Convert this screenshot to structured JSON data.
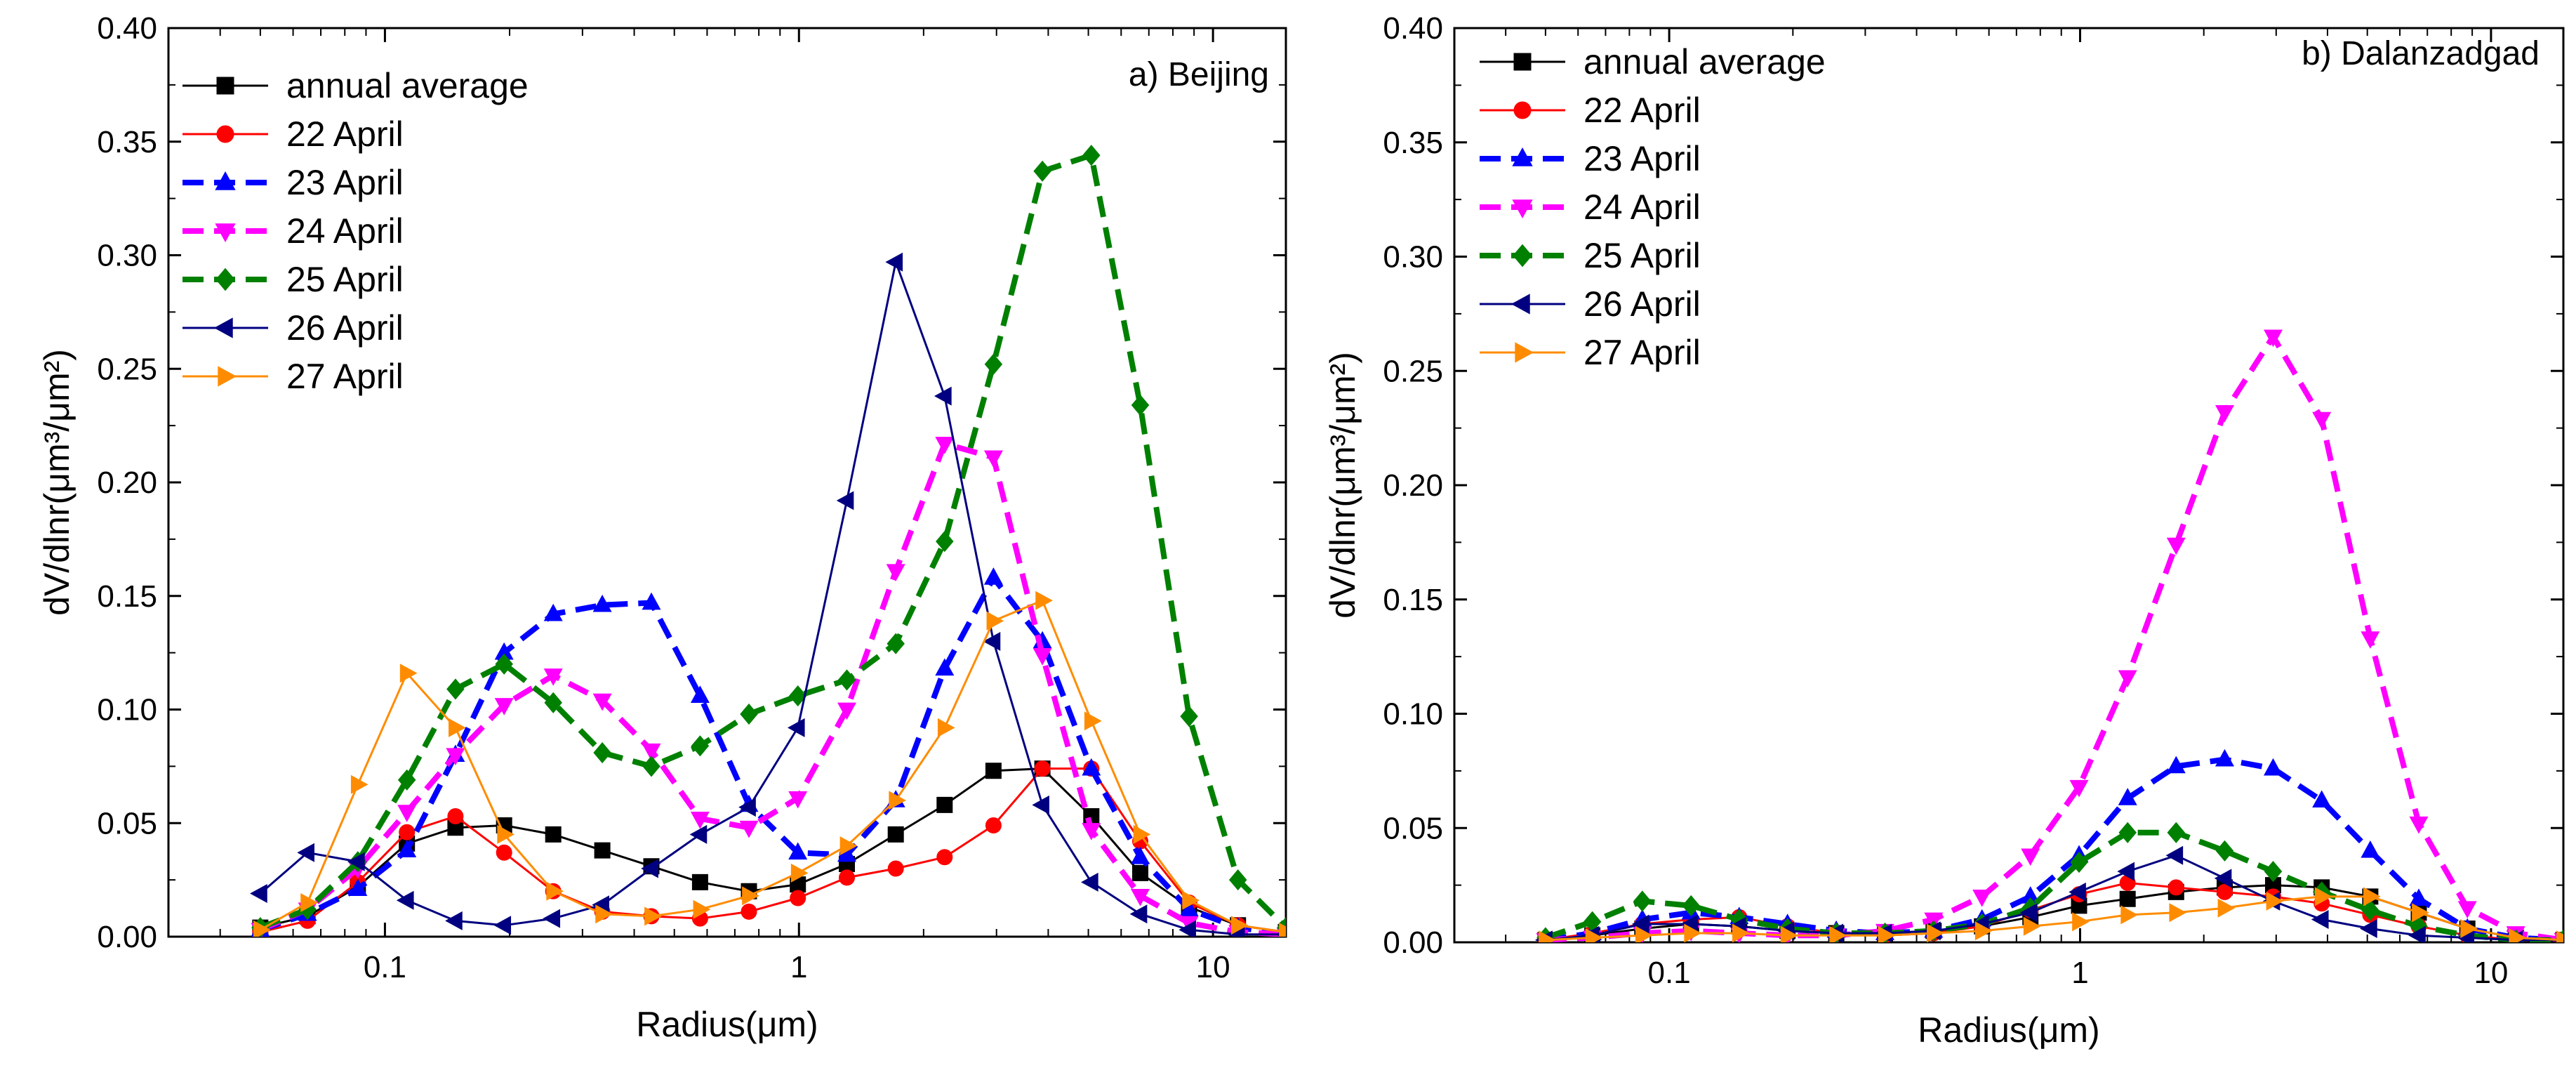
{
  "chart_data": [
    {
      "type": "line",
      "title": "a) Beijing",
      "xlabel": "Radius(μm)",
      "ylabel": "dV/dlnr(μm³/μm²)",
      "xscale": "log",
      "xlim": [
        0.03,
        15
      ],
      "ylim": [
        0,
        0.4
      ],
      "xticks": [
        0.1,
        1,
        10
      ],
      "xtick_labels": [
        "0.1",
        "1",
        "10"
      ],
      "yticks": [
        0,
        0.05,
        0.1,
        0.15,
        0.2,
        0.25,
        0.3,
        0.35,
        0.4
      ],
      "ytick_labels": [
        "0.00",
        "0.05",
        "0.10",
        "0.15",
        "0.20",
        "0.25",
        "0.30",
        "0.35",
        "0.40"
      ],
      "legend_position": "top-left",
      "x": [
        0.05,
        0.065,
        0.086,
        0.113,
        0.148,
        0.194,
        0.255,
        0.335,
        0.44,
        0.577,
        0.757,
        0.994,
        1.305,
        1.713,
        2.248,
        2.95,
        3.872,
        5.083,
        6.672,
        8.757,
        11.49,
        15.0
      ],
      "series": [
        {
          "name": "annual average",
          "color": "#000000",
          "marker": "square",
          "dashed": false,
          "values": [
            0.004,
            0.009,
            0.022,
            0.041,
            0.048,
            0.049,
            0.045,
            0.038,
            0.031,
            0.024,
            0.02,
            0.023,
            0.032,
            0.045,
            0.058,
            0.073,
            0.074,
            0.053,
            0.028,
            0.013,
            0.005,
            0.002
          ]
        },
        {
          "name": "22 April",
          "color": "#ff0000",
          "marker": "circle",
          "dashed": false,
          "values": [
            0.002,
            0.007,
            0.024,
            0.046,
            0.053,
            0.037,
            0.02,
            0.011,
            0.009,
            0.008,
            0.011,
            0.017,
            0.026,
            0.03,
            0.035,
            0.049,
            0.074,
            0.074,
            0.042,
            0.015,
            0.005,
            0.002
          ]
        },
        {
          "name": "23 April",
          "color": "#0000ff",
          "marker": "triangle-up",
          "dashed": true,
          "values": [
            0.003,
            0.01,
            0.021,
            0.038,
            0.08,
            0.125,
            0.142,
            0.146,
            0.147,
            0.106,
            0.058,
            0.037,
            0.036,
            0.06,
            0.118,
            0.158,
            0.13,
            0.074,
            0.035,
            0.012,
            0.004,
            0.001
          ]
        },
        {
          "name": "24 April",
          "color": "#ff00ff",
          "marker": "triangle-down",
          "dashed": true,
          "values": [
            0.003,
            0.012,
            0.03,
            0.055,
            0.08,
            0.102,
            0.115,
            0.104,
            0.082,
            0.052,
            0.048,
            0.061,
            0.1,
            0.161,
            0.217,
            0.211,
            0.124,
            0.047,
            0.018,
            0.006,
            0.002,
            0.001
          ]
        },
        {
          "name": "25 April",
          "color": "#008000",
          "marker": "diamond",
          "dashed": true,
          "values": [
            0.004,
            0.012,
            0.033,
            0.069,
            0.109,
            0.12,
            0.103,
            0.081,
            0.075,
            0.084,
            0.098,
            0.106,
            0.113,
            0.129,
            0.174,
            0.252,
            0.337,
            0.344,
            0.234,
            0.097,
            0.025,
            0.004
          ]
        },
        {
          "name": "26 April",
          "color": "#000080",
          "marker": "triangle-left",
          "dashed": false,
          "values": [
            0.019,
            0.037,
            0.033,
            0.016,
            0.007,
            0.005,
            0.008,
            0.014,
            0.03,
            0.045,
            0.057,
            0.092,
            0.192,
            0.297,
            0.238,
            0.13,
            0.058,
            0.024,
            0.01,
            0.003,
            0.001,
            0.001
          ]
        },
        {
          "name": "27 April",
          "color": "#ff8c00",
          "marker": "triangle-right",
          "dashed": false,
          "values": [
            0.003,
            0.015,
            0.067,
            0.116,
            0.092,
            0.045,
            0.02,
            0.01,
            0.009,
            0.012,
            0.018,
            0.028,
            0.04,
            0.06,
            0.092,
            0.139,
            0.148,
            0.095,
            0.045,
            0.016,
            0.005,
            0.002
          ]
        }
      ]
    },
    {
      "type": "line",
      "title": "b) Dalanzadgad",
      "xlabel": "Radius(μm)",
      "ylabel": "dV/dlnr(μm³/μm²)",
      "xscale": "log",
      "xlim": [
        0.03,
        15
      ],
      "ylim": [
        0,
        0.4
      ],
      "xticks": [
        0.1,
        1,
        10
      ],
      "xtick_labels": [
        "0.1",
        "1",
        "10"
      ],
      "yticks": [
        0,
        0.05,
        0.1,
        0.15,
        0.2,
        0.25,
        0.3,
        0.35,
        0.4
      ],
      "ytick_labels": [
        "0.00",
        "0.05",
        "0.10",
        "0.15",
        "0.20",
        "0.25",
        "0.30",
        "0.35",
        "0.40"
      ],
      "legend_position": "top-left",
      "x": [
        0.05,
        0.065,
        0.086,
        0.113,
        0.148,
        0.194,
        0.255,
        0.335,
        0.44,
        0.577,
        0.757,
        0.994,
        1.305,
        1.713,
        2.248,
        2.95,
        3.872,
        5.083,
        6.672,
        8.757,
        11.49,
        15.0
      ],
      "series": [
        {
          "name": "annual average",
          "color": "#000000",
          "marker": "square",
          "dashed": false,
          "values": [
            0.001,
            0.003,
            0.006,
            0.008,
            0.007,
            0.005,
            0.004,
            0.004,
            0.005,
            0.007,
            0.011,
            0.016,
            0.019,
            0.022,
            0.024,
            0.025,
            0.024,
            0.02,
            0.013,
            0.006,
            0.002,
            0.001
          ]
        },
        {
          "name": "22 April",
          "color": "#ff0000",
          "marker": "circle",
          "dashed": false,
          "values": [
            0.001,
            0.004,
            0.008,
            0.01,
            0.011,
            0.007,
            0.004,
            0.003,
            0.004,
            0.007,
            0.014,
            0.021,
            0.026,
            0.024,
            0.022,
            0.02,
            0.017,
            0.012,
            0.007,
            0.003,
            0.001,
            0.001
          ]
        },
        {
          "name": "23 April",
          "color": "#0000ff",
          "marker": "triangle-up",
          "dashed": true,
          "values": [
            0.001,
            0.004,
            0.01,
            0.013,
            0.011,
            0.008,
            0.005,
            0.004,
            0.005,
            0.01,
            0.02,
            0.038,
            0.063,
            0.077,
            0.08,
            0.076,
            0.062,
            0.04,
            0.019,
            0.006,
            0.002,
            0.001
          ]
        },
        {
          "name": "24 April",
          "color": "#ff00ff",
          "marker": "triangle-down",
          "dashed": true,
          "values": [
            0.001,
            0.002,
            0.004,
            0.005,
            0.004,
            0.003,
            0.003,
            0.005,
            0.01,
            0.02,
            0.038,
            0.068,
            0.116,
            0.174,
            0.232,
            0.265,
            0.229,
            0.133,
            0.052,
            0.015,
            0.004,
            0.001
          ]
        },
        {
          "name": "25 April",
          "color": "#008000",
          "marker": "diamond",
          "dashed": true,
          "values": [
            0.002,
            0.009,
            0.018,
            0.016,
            0.01,
            0.006,
            0.004,
            0.004,
            0.005,
            0.008,
            0.015,
            0.035,
            0.048,
            0.048,
            0.04,
            0.031,
            0.022,
            0.014,
            0.007,
            0.003,
            0.001,
            0.001
          ]
        },
        {
          "name": "26 April",
          "color": "#000080",
          "marker": "triangle-left",
          "dashed": false,
          "values": [
            0.001,
            0.003,
            0.008,
            0.008,
            0.007,
            0.005,
            0.004,
            0.004,
            0.005,
            0.008,
            0.013,
            0.022,
            0.031,
            0.038,
            0.028,
            0.018,
            0.01,
            0.006,
            0.003,
            0.002,
            0.001,
            0.001
          ]
        },
        {
          "name": "27 April",
          "color": "#ff8c00",
          "marker": "triangle-right",
          "dashed": false,
          "values": [
            0.001,
            0.002,
            0.003,
            0.004,
            0.004,
            0.003,
            0.003,
            0.003,
            0.004,
            0.005,
            0.007,
            0.009,
            0.012,
            0.013,
            0.015,
            0.018,
            0.02,
            0.02,
            0.013,
            0.006,
            0.002,
            0.001
          ]
        }
      ]
    }
  ]
}
